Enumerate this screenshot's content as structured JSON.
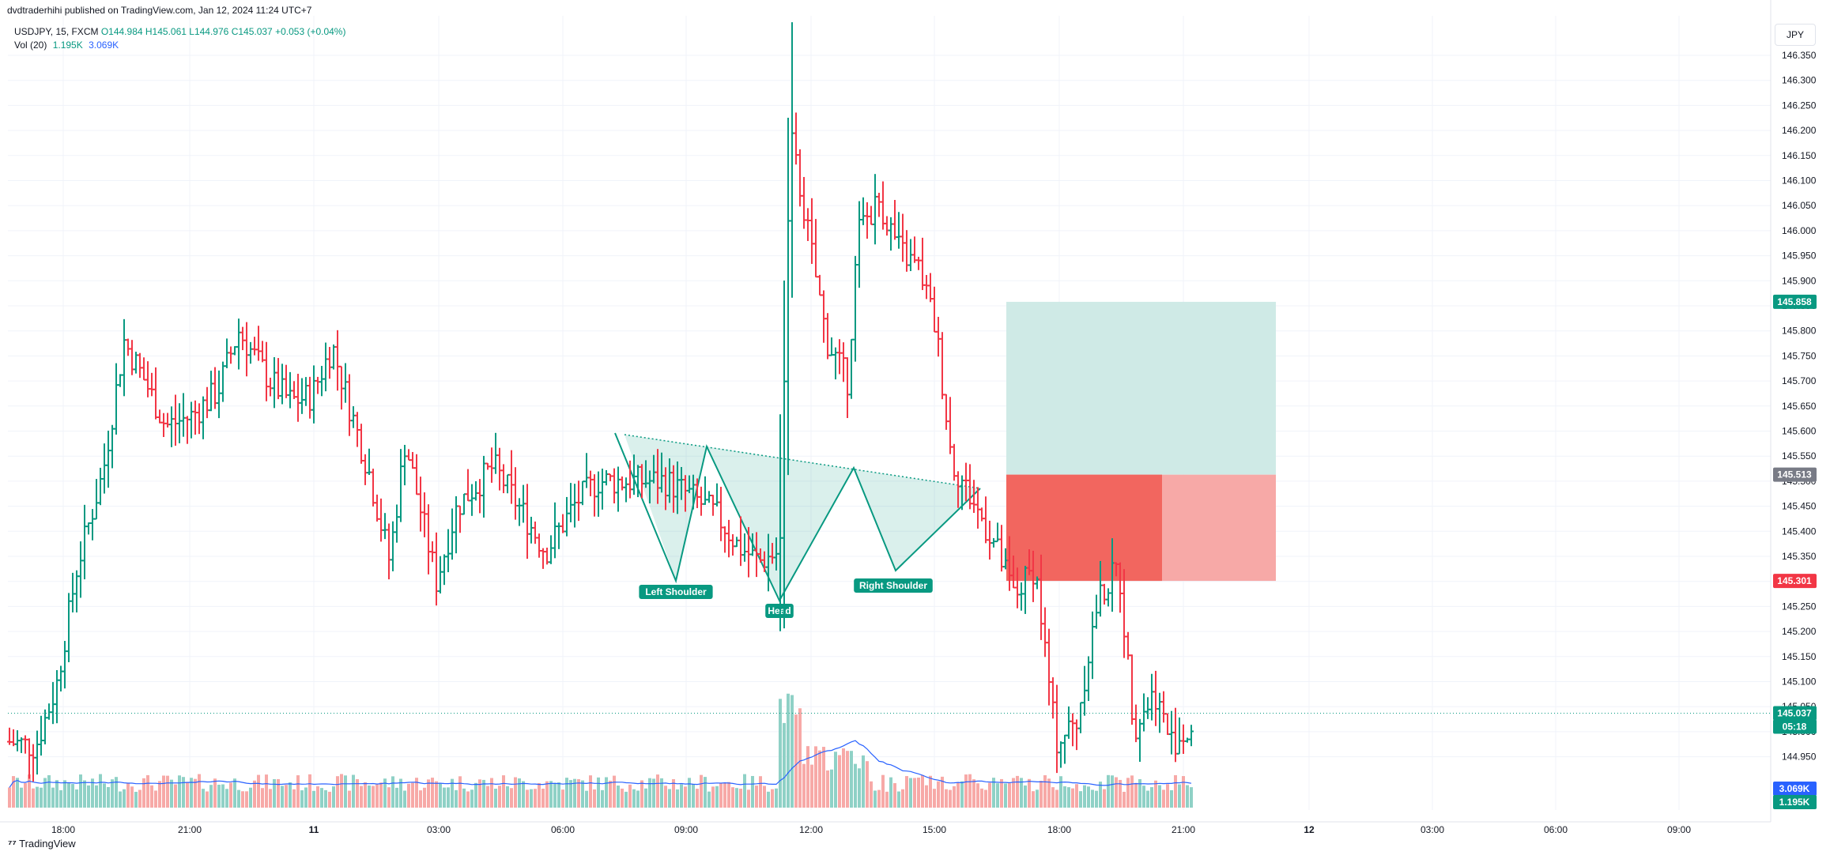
{
  "publisher": "dvdtraderhihi published on TradingView.com, Jan 12, 2024 11:24 UTC+7",
  "symbol": {
    "name": "USDJPY, 15, FXCM",
    "open": "O144.984",
    "high": "H145.061",
    "low": "L144.976",
    "close": "C145.037",
    "change": "+0.053 (+0.04%)"
  },
  "volume_indicator": {
    "label": "Vol (20)",
    "value": "1.195K",
    "ma": "3.069K"
  },
  "currency_label": "JPY",
  "branding": "TradingView",
  "colors": {
    "up": "#089981",
    "down": "#f23645",
    "vol_up": "#8fd1c6",
    "vol_down": "#f7a9a7",
    "ma": "#2962ff",
    "target_zone": "#cfeae6",
    "stop_zone": "#f7a9a7",
    "stop_zone_dark": "#f2665f"
  },
  "chart_data": {
    "type": "ohlc",
    "x_tick_labels": [
      "18:00",
      "21:00",
      "11",
      "03:00",
      "06:00",
      "09:00",
      "12:00",
      "15:00",
      "18:00",
      "21:00",
      "12",
      "03:00",
      "06:00",
      "09:00"
    ],
    "y_tick_labels": [
      "146.350",
      "146.300",
      "146.250",
      "146.200",
      "146.150",
      "146.100",
      "146.050",
      "146.000",
      "145.950",
      "145.900",
      "145.850",
      "145.800",
      "145.750",
      "145.700",
      "145.650",
      "145.600",
      "145.550",
      "145.500",
      "145.450",
      "145.400",
      "145.350",
      "145.300",
      "145.250",
      "145.200",
      "145.150",
      "145.100",
      "145.050",
      "145.000",
      "144.950"
    ],
    "ylim": [
      144.9,
      146.38
    ],
    "price_labels": {
      "take_profit": "145.858",
      "entry": "145.513",
      "stop_loss": "145.301",
      "last": "145.037",
      "countdown": "05:18",
      "vol_ma": "3.069K",
      "vol": "1.195K"
    },
    "pattern": {
      "name": "Inverse Head and Shoulders",
      "labels": [
        "Left Shoulder",
        "Head",
        "Right Shoulder"
      ]
    },
    "volume_ylim": [
      0,
      12000
    ]
  }
}
